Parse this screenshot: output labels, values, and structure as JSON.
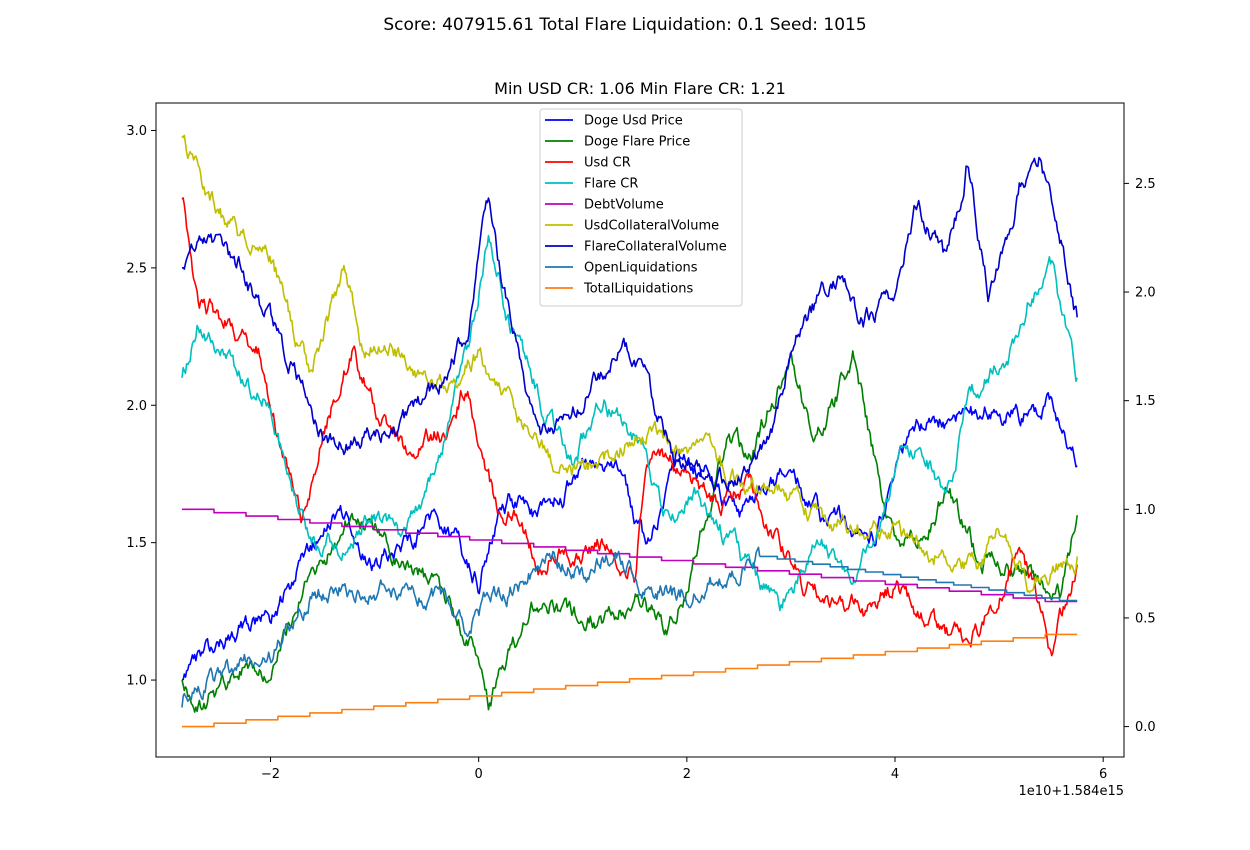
{
  "suptitle": "Score: 407915.61 Total Flare Liquidation: 0.1 Seed: 1015",
  "chart_data": {
    "type": "line",
    "title": "Min USD CR: 1.06 Min Flare CR: 1.21",
    "x_offset_label": "1e10+1.584e15",
    "xlim": [
      -3.1,
      6.2
    ],
    "left_ylim": [
      0.72,
      3.1
    ],
    "right_ylim": [
      -0.14,
      2.87
    ],
    "x_ticks": [
      -2,
      0,
      2,
      4,
      6
    ],
    "x_tick_labels": [
      "−2",
      "0",
      "2",
      "4",
      "6"
    ],
    "left_y_ticks": [
      1.0,
      1.5,
      2.0,
      2.5,
      3.0
    ],
    "left_y_tick_labels": [
      "1.0",
      "1.5",
      "2.0",
      "2.5",
      "3.0"
    ],
    "right_y_ticks": [
      0.0,
      0.5,
      1.0,
      1.5,
      2.0,
      2.5
    ],
    "right_y_tick_labels": [
      "0.0",
      "0.5",
      "1.0",
      "1.5",
      "2.0",
      "2.5"
    ],
    "grid": false,
    "legend_position": "top-center",
    "series": [
      {
        "name": "Doge Usd Price",
        "color": "#0000ff",
        "axis": "left",
        "style": "noisy",
        "x": [
          -2.85,
          -2.6,
          -2.3,
          -2.0,
          -1.6,
          -1.3,
          -1.0,
          -0.7,
          -0.4,
          -0.2,
          0.0,
          0.1,
          0.3,
          0.6,
          1.0,
          1.3,
          1.6,
          1.9,
          2.2,
          2.5,
          2.8,
          3.0,
          3.3,
          3.6,
          3.8,
          4.0,
          4.2,
          4.4,
          4.7,
          5.0,
          5.2,
          5.5,
          5.6,
          5.75
        ],
        "y": [
          1.0,
          1.1,
          1.2,
          1.2,
          1.5,
          1.6,
          1.4,
          1.5,
          1.6,
          1.5,
          1.35,
          1.5,
          1.65,
          1.6,
          1.75,
          1.8,
          1.5,
          1.8,
          1.75,
          1.6,
          1.7,
          1.75,
          1.6,
          1.55,
          1.5,
          1.8,
          1.9,
          1.95,
          1.95,
          2.0,
          1.95,
          2.0,
          1.9,
          1.78
        ]
      },
      {
        "name": "Doge Flare Price",
        "color": "#008000",
        "axis": "left",
        "style": "noisy",
        "x": [
          -2.85,
          -2.7,
          -2.4,
          -2.0,
          -1.7,
          -1.4,
          -1.2,
          -0.9,
          -0.6,
          -0.3,
          -0.05,
          0.1,
          0.3,
          0.6,
          0.9,
          1.2,
          1.5,
          1.8,
          2.0,
          2.2,
          2.4,
          2.6,
          2.9,
          3.0,
          3.2,
          3.4,
          3.6,
          3.8,
          4.0,
          4.2,
          4.5,
          4.8,
          5.1,
          5.4,
          5.6,
          5.75
        ],
        "y": [
          1.0,
          0.9,
          1.0,
          1.05,
          1.3,
          1.5,
          1.6,
          1.5,
          1.4,
          1.3,
          1.1,
          0.9,
          1.1,
          1.3,
          1.25,
          1.2,
          1.3,
          1.2,
          1.35,
          1.6,
          1.9,
          1.8,
          2.1,
          2.2,
          1.9,
          2.0,
          2.2,
          1.8,
          1.5,
          1.5,
          1.7,
          1.45,
          1.4,
          1.35,
          1.3,
          1.6
        ]
      },
      {
        "name": "Usd CR",
        "color": "#ff0000",
        "axis": "left",
        "style": "noisy",
        "x": [
          -2.85,
          -2.7,
          -2.4,
          -2.1,
          -1.9,
          -1.7,
          -1.5,
          -1.2,
          -1.0,
          -0.7,
          -0.5,
          -0.3,
          -0.1,
          0.0,
          0.2,
          0.4,
          0.6,
          0.8,
          1.0,
          1.2,
          1.5,
          1.6,
          1.8,
          2.0,
          2.3,
          2.6,
          2.9,
          3.1,
          3.4,
          3.7,
          4.0,
          4.3,
          4.6,
          4.7,
          5.0,
          5.2,
          5.5,
          5.75
        ],
        "y": [
          2.75,
          2.4,
          2.3,
          2.2,
          1.85,
          1.6,
          1.9,
          2.2,
          2.0,
          1.8,
          1.9,
          1.9,
          2.1,
          1.85,
          1.6,
          1.6,
          1.4,
          1.5,
          1.45,
          1.5,
          1.4,
          1.8,
          1.8,
          1.75,
          1.65,
          1.7,
          1.5,
          1.35,
          1.3,
          1.25,
          1.35,
          1.2,
          1.15,
          1.1,
          1.3,
          1.5,
          1.1,
          1.42
        ]
      },
      {
        "name": "Flare CR",
        "color": "#00bfbf",
        "axis": "left",
        "style": "noisy",
        "x": [
          -2.85,
          -2.7,
          -2.5,
          -2.3,
          -2.0,
          -1.8,
          -1.6,
          -1.3,
          -1.0,
          -0.7,
          -0.4,
          -0.1,
          0.1,
          0.3,
          0.6,
          0.9,
          1.2,
          1.5,
          1.8,
          2.1,
          2.4,
          2.7,
          2.9,
          3.1,
          3.3,
          3.6,
          3.9,
          4.1,
          4.3,
          4.5,
          4.7,
          4.9,
          5.1,
          5.3,
          5.5,
          5.75
        ],
        "y": [
          2.1,
          2.3,
          2.2,
          2.1,
          2.0,
          1.7,
          1.5,
          1.5,
          1.6,
          1.5,
          1.8,
          2.2,
          2.6,
          2.3,
          2.0,
          1.8,
          2.0,
          1.9,
          1.6,
          1.7,
          1.5,
          1.35,
          1.25,
          1.4,
          1.5,
          1.35,
          1.6,
          1.9,
          1.8,
          1.7,
          2.0,
          2.1,
          2.2,
          2.4,
          2.5,
          2.1
        ]
      },
      {
        "name": "DebtVolume",
        "color": "#bf00bf",
        "axis": "right",
        "style": "step",
        "x": [
          -2.85,
          5.75
        ],
        "y": [
          1.0,
          0.56
        ]
      },
      {
        "name": "UsdCollateralVolume",
        "color": "#bfbf00",
        "axis": "left",
        "style": "noisy",
        "x": [
          -2.85,
          -2.6,
          -2.3,
          -2.0,
          -1.8,
          -1.6,
          -1.3,
          -1.1,
          -0.9,
          -0.6,
          -0.3,
          0.0,
          0.3,
          0.6,
          0.9,
          1.2,
          1.5,
          1.8,
          2.1,
          2.4,
          2.7,
          3.0,
          3.3,
          3.6,
          3.9,
          4.2,
          4.5,
          4.8,
          5.0,
          5.3,
          5.5,
          5.75
        ],
        "y": [
          2.98,
          2.75,
          2.6,
          2.55,
          2.3,
          2.1,
          2.5,
          2.2,
          2.25,
          2.15,
          2.05,
          2.2,
          2.0,
          1.85,
          1.75,
          1.8,
          1.9,
          1.85,
          1.85,
          1.75,
          1.7,
          1.65,
          1.6,
          1.55,
          1.55,
          1.5,
          1.45,
          1.4,
          1.55,
          1.35,
          1.4,
          1.45
        ]
      },
      {
        "name": "FlareCollateralVolume",
        "color": "#0000cd",
        "axis": "left",
        "style": "noisy",
        "x": [
          -2.85,
          -2.6,
          -2.3,
          -2.0,
          -1.8,
          -1.6,
          -1.3,
          -1.0,
          -0.7,
          -0.3,
          -0.1,
          0.1,
          0.3,
          0.6,
          0.9,
          1.2,
          1.4,
          1.6,
          1.9,
          2.2,
          2.5,
          2.8,
          3.0,
          3.3,
          3.5,
          3.7,
          4.0,
          4.2,
          4.5,
          4.7,
          4.9,
          5.2,
          5.4,
          5.6,
          5.75
        ],
        "y": [
          2.5,
          2.6,
          2.5,
          2.3,
          2.15,
          1.95,
          1.85,
          1.9,
          1.95,
          2.1,
          2.3,
          2.75,
          2.3,
          1.9,
          2.0,
          2.1,
          2.2,
          2.1,
          1.8,
          1.7,
          1.75,
          1.85,
          2.2,
          2.4,
          2.5,
          2.3,
          2.4,
          2.75,
          2.5,
          2.9,
          2.4,
          2.8,
          2.9,
          2.6,
          2.32
        ]
      },
      {
        "name": "OpenLiquidations",
        "color": "#1f77b4",
        "axis": "left",
        "style": "noisy",
        "x": [
          -2.85,
          -2.6,
          -2.3,
          -2.0,
          -1.8,
          -1.6,
          -1.3,
          -1.0,
          -0.7,
          -0.4,
          -0.1,
          0.1,
          0.4,
          0.7,
          1.0,
          1.3,
          1.6,
          1.9,
          2.2,
          2.5,
          2.7
        ],
        "y": [
          0.9,
          1.0,
          1.05,
          1.1,
          1.2,
          1.3,
          1.35,
          1.3,
          1.35,
          1.3,
          1.2,
          1.3,
          1.35,
          1.45,
          1.4,
          1.45,
          1.35,
          1.3,
          1.35,
          1.4,
          1.45
        ]
      },
      {
        "name": "OpenLiquidations (step)",
        "color": "#1f77b4",
        "axis": "left",
        "style": "step",
        "x": [
          2.7,
          5.75
        ],
        "y": [
          1.45,
          1.28
        ]
      },
      {
        "name": "TotalLiquidations",
        "color": "#ff7f0e",
        "axis": "right",
        "style": "step",
        "x": [
          -2.85,
          5.75
        ],
        "y": [
          0.0,
          0.44
        ]
      }
    ]
  }
}
